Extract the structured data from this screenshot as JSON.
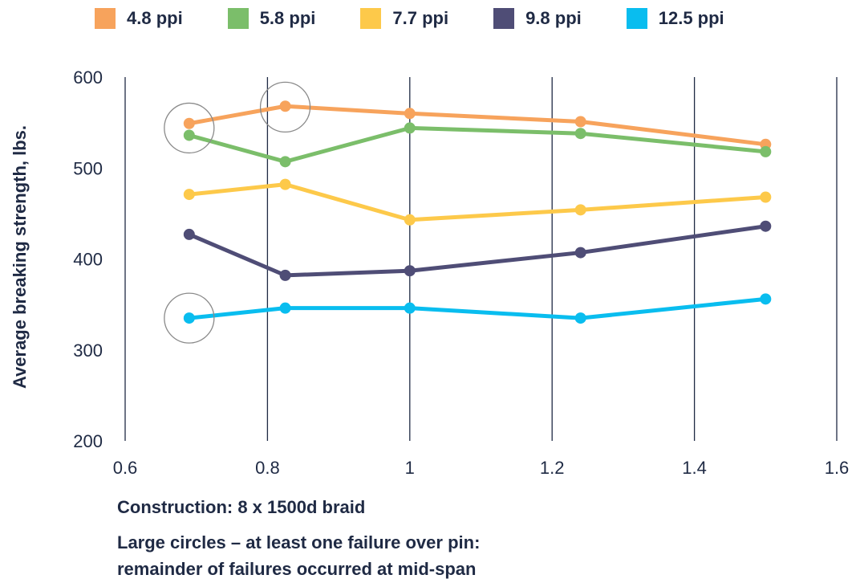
{
  "chart_data": {
    "type": "line",
    "ylabel": "Average breaking strength, lbs.",
    "xlabel": "",
    "xlim": [
      0.6,
      1.6
    ],
    "ylim": [
      200,
      600
    ],
    "x_ticks": [
      "0.6",
      "0.8",
      "1",
      "1.2",
      "1.4",
      "1.6"
    ],
    "y_ticks": [
      "200",
      "300",
      "400",
      "500",
      "600"
    ],
    "grid": "vertical",
    "legend_position": "top",
    "x": [
      0.69,
      0.825,
      1.0,
      1.24,
      1.5
    ],
    "series": [
      {
        "name": "4.8 ppi",
        "color": "#F7A35C",
        "values": [
          549,
          568,
          560,
          551,
          526
        ]
      },
      {
        "name": "5.8 ppi",
        "color": "#7BBE6A",
        "values": [
          536,
          507,
          544,
          538,
          518
        ]
      },
      {
        "name": "7.7 ppi",
        "color": "#FDC94A",
        "values": [
          471,
          482,
          443,
          454,
          468
        ]
      },
      {
        "name": "9.8 ppi",
        "color": "#4F4D76",
        "values": [
          427,
          382,
          387,
          407,
          436
        ]
      },
      {
        "name": "12.5 ppi",
        "color": "#09BDEF",
        "values": [
          335,
          346,
          346,
          335,
          356
        ]
      }
    ],
    "highlighted_points": [
      {
        "x": 0.69,
        "y": 544
      },
      {
        "x": 0.825,
        "y": 567
      },
      {
        "x": 0.69,
        "y": 335
      }
    ]
  },
  "notes": {
    "construction": "Construction:  8 x 1500d braid",
    "circles_line1": "Large circles – at least one failure over pin:",
    "circles_line2": "remainder of failures occurred at mid-span"
  }
}
